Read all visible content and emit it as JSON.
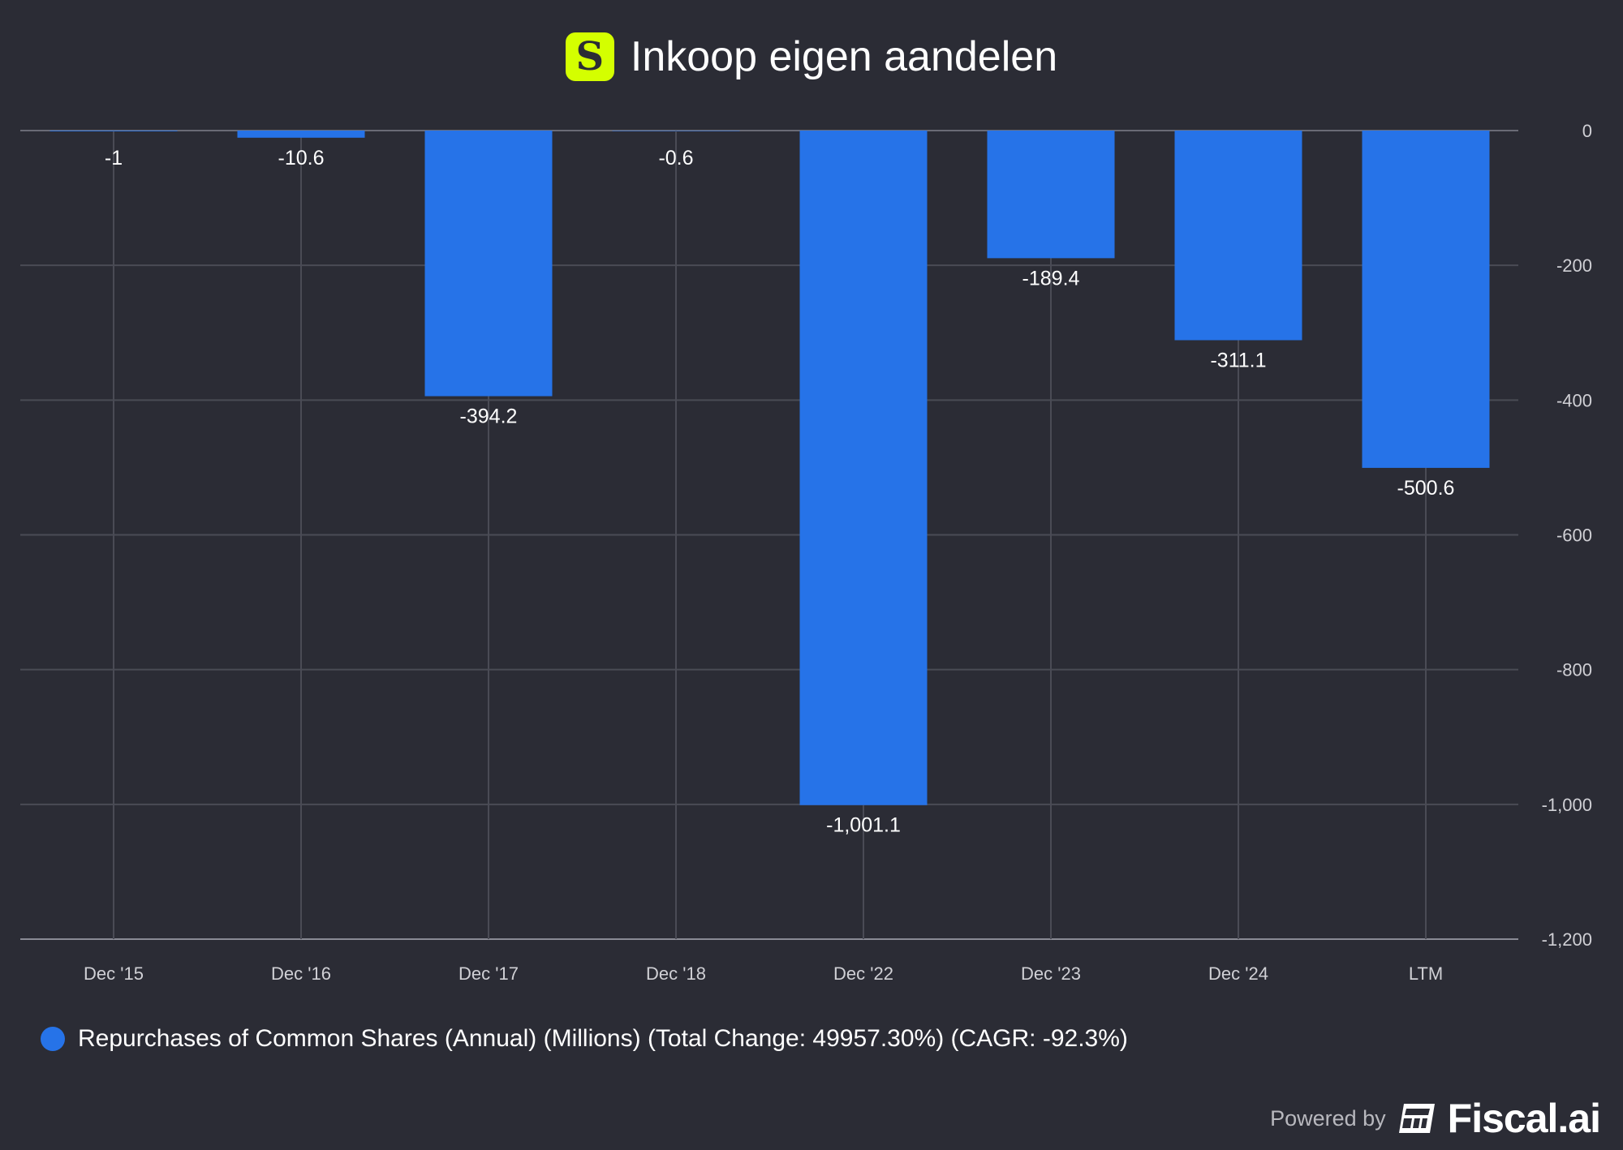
{
  "header": {
    "title": "Inkoop eigen aandelen",
    "logo_letter": "S"
  },
  "chart_data": {
    "type": "bar",
    "title": "Inkoop eigen aandelen",
    "categories": [
      "Dec '15",
      "Dec '16",
      "Dec '17",
      "Dec '18",
      "Dec '22",
      "Dec '23",
      "Dec '24",
      "LTM"
    ],
    "values": [
      -1,
      -10.6,
      -394.2,
      -0.6,
      -1001.1,
      -189.4,
      -311.1,
      -500.6
    ],
    "data_labels": [
      "-1",
      "-10.6",
      "-394.2",
      "-0.6",
      "-1,001.1",
      "-189.4",
      "-311.1",
      "-500.6"
    ],
    "ylim": [
      -1200,
      0
    ],
    "yticks": [
      0,
      -200,
      -400,
      -600,
      -800,
      -1000,
      -1200
    ],
    "ytick_labels": [
      "0",
      "-200",
      "-400",
      "-600",
      "-800",
      "-1,000",
      "-1,200"
    ],
    "y_axis_side": "right",
    "grid": true,
    "bar_color": "#2673e8",
    "legend": {
      "placement": "bottom-left",
      "label": "Repurchases of Common Shares (Annual) (Millions) (Total Change: 49957.30%) (CAGR: -92.3%)"
    }
  },
  "footer": {
    "powered_by": "Powered by",
    "brand": "Fiscal.ai"
  }
}
